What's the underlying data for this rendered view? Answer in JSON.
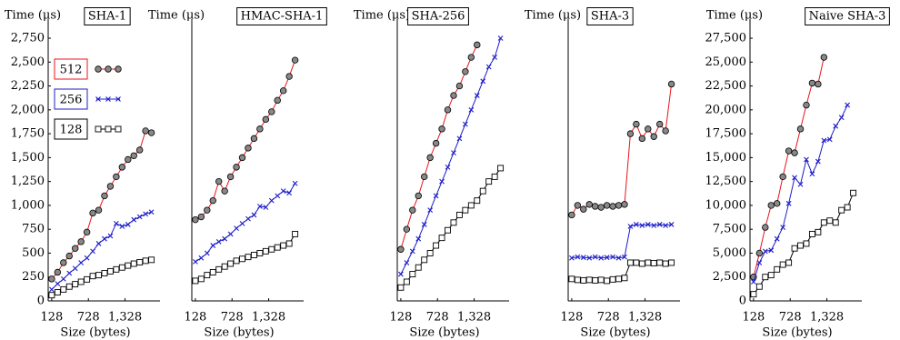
{
  "chart_data": [
    {
      "type": "line",
      "title": "SHA-1",
      "ylabel": "Time (μs)",
      "xlabel": "Size (bytes)",
      "legend": "upper left",
      "x": [
        128,
        224,
        320,
        416,
        512,
        608,
        704,
        800,
        896,
        992,
        1088,
        1184,
        1280,
        1376,
        1472,
        1568,
        1664,
        1760
      ],
      "xlim": [
        70,
        1900
      ],
      "xticks": [
        128,
        728,
        {
          "value": 1328,
          "label": "1,328"
        }
      ],
      "ylim": [
        0,
        2950
      ],
      "yticks": [
        0,
        250,
        500,
        750,
        {
          "value": 1000,
          "label": "1,000"
        },
        {
          "value": 1250,
          "label": "1,250"
        },
        {
          "value": 1500,
          "label": "1,500"
        },
        {
          "value": 1750,
          "label": "1,750"
        },
        {
          "value": 2000,
          "label": "2,000"
        },
        {
          "value": 2250,
          "label": "2,250"
        },
        {
          "value": 2500,
          "label": "2,500"
        },
        {
          "value": 2750,
          "label": "2,750"
        }
      ],
      "series": [
        {
          "name": "512",
          "color": "#e8141c",
          "marker": "circle",
          "values": [
            230,
            300,
            400,
            470,
            550,
            620,
            720,
            920,
            950,
            1100,
            1200,
            1300,
            1400,
            1480,
            1520,
            1580,
            1780,
            1760
          ]
        },
        {
          "name": "256",
          "color": "#1c1cc8",
          "marker": "x",
          "values": [
            120,
            180,
            230,
            290,
            340,
            400,
            450,
            520,
            600,
            650,
            680,
            810,
            780,
            800,
            850,
            880,
            910,
            930
          ]
        },
        {
          "name": "128",
          "color": "#000000",
          "marker": "square",
          "values": [
            60,
            90,
            120,
            150,
            175,
            200,
            225,
            260,
            270,
            290,
            310,
            330,
            350,
            370,
            390,
            405,
            420,
            430
          ]
        }
      ]
    },
    {
      "type": "line",
      "title": "HMAC-SHA-1",
      "ylabel": "Time (μs)",
      "xlabel": "Size (bytes)",
      "x": [
        128,
        224,
        320,
        416,
        512,
        608,
        704,
        800,
        896,
        992,
        1088,
        1184,
        1280,
        1376,
        1472,
        1568,
        1664,
        1760
      ],
      "xlim": [
        70,
        1900
      ],
      "xticks": [
        128,
        728,
        {
          "value": 1328,
          "label": "1,328"
        }
      ],
      "ylim": [
        0,
        2950
      ],
      "series": [
        {
          "color": "#e8141c",
          "marker": "circle",
          "values": [
            850,
            880,
            950,
            1050,
            1250,
            1150,
            1300,
            1400,
            1500,
            1600,
            1700,
            1800,
            1900,
            1980,
            2100,
            2200,
            2350,
            2520
          ]
        },
        {
          "color": "#1c1cc8",
          "marker": "x",
          "values": [
            410,
            450,
            500,
            580,
            620,
            650,
            700,
            760,
            810,
            860,
            900,
            990,
            980,
            1050,
            1100,
            1150,
            1130,
            1230
          ]
        },
        {
          "color": "#000000",
          "marker": "square",
          "values": [
            210,
            230,
            270,
            300,
            330,
            360,
            390,
            420,
            440,
            460,
            480,
            500,
            520,
            540,
            560,
            580,
            600,
            700
          ]
        }
      ]
    },
    {
      "type": "line",
      "title": "SHA-256",
      "ylabel": "Time (μs)",
      "xlabel": "Size (bytes)",
      "x": [
        128,
        224,
        320,
        416,
        512,
        608,
        704,
        800,
        896,
        992,
        1088,
        1184,
        1280,
        1376,
        1472,
        1568,
        1664,
        1760
      ],
      "xlim": [
        70,
        1900
      ],
      "xticks": [
        128,
        728,
        {
          "value": 1328,
          "label": "1,328"
        }
      ],
      "ylim": [
        0,
        2950
      ],
      "series": [
        {
          "color": "#e8141c",
          "marker": "circle",
          "values": [
            540,
            750,
            950,
            1100,
            1300,
            1500,
            1650,
            1800,
            2000,
            2150,
            2250,
            2400,
            2550,
            2680,
            null,
            null,
            null,
            null
          ]
        },
        {
          "color": "#1c1cc8",
          "marker": "x",
          "values": [
            280,
            400,
            520,
            650,
            800,
            950,
            1100,
            1250,
            1400,
            1550,
            1700,
            1850,
            2000,
            2150,
            2300,
            2450,
            2550,
            2750
          ]
        },
        {
          "color": "#000000",
          "marker": "square",
          "values": [
            140,
            200,
            280,
            350,
            430,
            500,
            580,
            660,
            740,
            820,
            900,
            950,
            1000,
            1050,
            1150,
            1250,
            1300,
            1390
          ]
        }
      ]
    },
    {
      "type": "line",
      "title": "SHA-3",
      "ylabel": "Time (μs)",
      "xlabel": "Size (bytes)",
      "x": [
        128,
        224,
        320,
        416,
        512,
        608,
        704,
        800,
        896,
        992,
        1088,
        1184,
        1280,
        1376,
        1472,
        1568,
        1664,
        1760
      ],
      "xlim": [
        70,
        1900
      ],
      "xticks": [
        128,
        728,
        {
          "value": 1328,
          "label": "1,328"
        }
      ],
      "ylim": [
        0,
        2950
      ],
      "series": [
        {
          "color": "#e8141c",
          "marker": "circle",
          "values": [
            900,
            1000,
            960,
            1010,
            990,
            980,
            1000,
            990,
            1000,
            1010,
            1750,
            1850,
            1700,
            1800,
            1720,
            1850,
            1780,
            2270
          ]
        },
        {
          "color": "#1c1cc8",
          "marker": "x",
          "values": [
            450,
            460,
            455,
            450,
            460,
            450,
            455,
            460,
            450,
            460,
            780,
            800,
            790,
            800,
            790,
            800,
            790,
            800
          ]
        },
        {
          "color": "#000000",
          "marker": "square",
          "values": [
            230,
            220,
            215,
            220,
            215,
            220,
            210,
            225,
            230,
            240,
            400,
            400,
            390,
            400,
            395,
            400,
            390,
            400
          ]
        }
      ]
    },
    {
      "type": "line",
      "title": "Naive SHA-3",
      "ylabel": "Time (μs)",
      "xlabel": "Size (bytes)",
      "x": [
        128,
        224,
        320,
        416,
        512,
        608,
        704,
        800,
        896,
        992,
        1088,
        1184,
        1280,
        1376,
        1472,
        1568,
        1664,
        1760
      ],
      "xlim": [
        70,
        1900
      ],
      "xticks": [
        128,
        728,
        {
          "value": 1328,
          "label": "1,328"
        }
      ],
      "ylim": [
        0,
        29500
      ],
      "yticks": [
        0,
        {
          "value": 2500,
          "label": "2,500"
        },
        {
          "value": 5000,
          "label": "5,000"
        },
        {
          "value": 7500,
          "label": "7,500"
        },
        {
          "value": 10000,
          "label": "10,000"
        },
        {
          "value": 12500,
          "label": "12,500"
        },
        {
          "value": 15000,
          "label": "15,000"
        },
        {
          "value": 17500,
          "label": "17,500"
        },
        {
          "value": 20000,
          "label": "20,000"
        },
        {
          "value": 22500,
          "label": "22,500"
        },
        {
          "value": 25000,
          "label": "25,000"
        },
        {
          "value": 27500,
          "label": "27,500"
        }
      ],
      "series": [
        {
          "color": "#e8141c",
          "marker": "circle",
          "values": [
            2500,
            5000,
            7700,
            10000,
            10200,
            13000,
            15700,
            15500,
            18000,
            20500,
            22800,
            22700,
            25500,
            null,
            null,
            null,
            null,
            null
          ]
        },
        {
          "color": "#1c1cc8",
          "marker": "x",
          "values": [
            2000,
            4000,
            5200,
            5300,
            6500,
            7700,
            10200,
            12900,
            12200,
            14800,
            13300,
            14600,
            16800,
            16900,
            18300,
            19200,
            20500,
            null
          ]
        },
        {
          "color": "#000000",
          "marker": "square",
          "values": [
            700,
            1500,
            2500,
            2700,
            3300,
            3800,
            4000,
            5500,
            5800,
            6000,
            7000,
            7200,
            8200,
            8400,
            8200,
            9500,
            9800,
            11300
          ]
        }
      ]
    }
  ]
}
